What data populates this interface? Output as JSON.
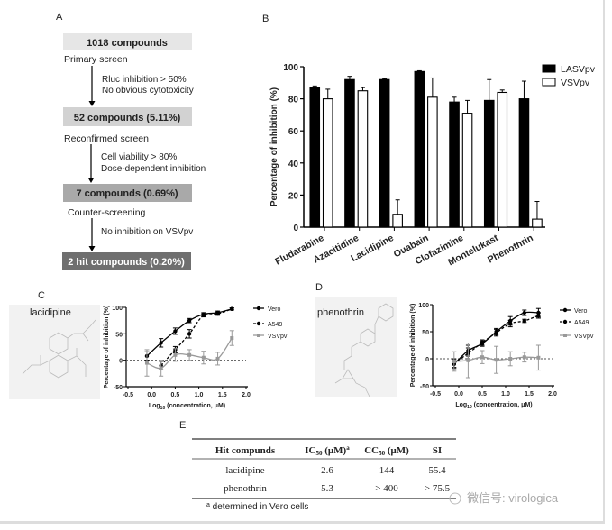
{
  "panel_a": {
    "label": "A",
    "boxes": [
      "1018 compounds",
      "52 compounds  (5.11%)",
      "7 compounds  (0.69%)",
      "2 hit compounds (0.20%)"
    ],
    "box_colors": [
      "#e6e6e6",
      "#d2d2d2",
      "#a9a9a9",
      "#6f6f6f"
    ],
    "steps": [
      {
        "name": "Primary screen",
        "criteria": [
          "Rluc inhibition > 50%",
          "No obvious cytotoxicity"
        ]
      },
      {
        "name": "Reconfirmed screen",
        "criteria": [
          "Cell viability > 80%",
          "Dose-dependent inhibition"
        ]
      },
      {
        "name": "Counter-screening",
        "criteria": [
          "No inhibition on VSVpv"
        ]
      }
    ]
  },
  "panel_c": {
    "label": "C",
    "compound": "lacidipine"
  },
  "panel_d": {
    "label": "D",
    "compound": "phenothrin"
  },
  "chart_data": [
    {
      "panel": "B",
      "type": "bar",
      "ylabel": "Percentage of inhibition (%)",
      "ylim": [
        0,
        100
      ],
      "yticks": [
        "0",
        "20",
        "40",
        "60",
        "80",
        "100"
      ],
      "categories": [
        "Fludarabine",
        "Azacitidine",
        "Lacidipine",
        "Ouabain",
        "Clofazimine",
        "Montelukast",
        "Phenothrin"
      ],
      "legend_placement": "top-right",
      "series": [
        {
          "name": "LASVpv",
          "color": "#000000",
          "values": [
            87,
            92,
            92,
            97,
            78,
            79,
            80
          ],
          "errors": [
            1,
            2,
            0.5,
            0.5,
            3,
            13,
            11
          ]
        },
        {
          "name": "VSVpv",
          "color": "#ffffff",
          "values": [
            80,
            85,
            8,
            81,
            71,
            84,
            5
          ],
          "errors": [
            6,
            2,
            9,
            12,
            8,
            1.5,
            11
          ]
        }
      ]
    },
    {
      "panel": "C",
      "type": "line",
      "xlabel": "Log10 (concentration, μM)",
      "ylabel": "Percentage of inhibition (%)",
      "xlim": [
        -0.5,
        2.0
      ],
      "ylim": [
        -50,
        100
      ],
      "xticks": [
        "-0.5",
        "0.0",
        "0.5",
        "1.0",
        "1.5",
        "2.0"
      ],
      "yticks": [
        "-50",
        "0",
        "50",
        "100"
      ],
      "x": [
        -0.1,
        0.2,
        0.5,
        0.8,
        1.1,
        1.4,
        1.7
      ],
      "series": [
        {
          "name": "Vero",
          "color": "#000000",
          "dash": false,
          "values": [
            8,
            33,
            55,
            75,
            87,
            90,
            97
          ],
          "errors": [
            8,
            8,
            6,
            4,
            3,
            3,
            2
          ]
        },
        {
          "name": "A549",
          "color": "#000000",
          "dash": true,
          "values": [
            null,
            -10,
            20,
            50,
            85,
            88,
            97
          ],
          "errors": [
            null,
            8,
            6,
            8,
            3,
            3,
            2
          ]
        },
        {
          "name": "VSVpv",
          "color": "#999999",
          "dash": false,
          "values": [
            -5,
            -15,
            10,
            10,
            5,
            3,
            42
          ],
          "errors": [
            25,
            15,
            12,
            10,
            12,
            12,
            14
          ]
        }
      ]
    },
    {
      "panel": "D",
      "type": "line",
      "xlabel": "Log10 (concentration, μM)",
      "ylabel": "Percentage of inhibition (%)",
      "xlim": [
        -0.5,
        2.0
      ],
      "ylim": [
        -50,
        100
      ],
      "xticks": [
        "-0.5",
        "0.0",
        "0.5",
        "1.0",
        "1.5",
        "2.0"
      ],
      "yticks": [
        "-50",
        "0",
        "50",
        "100"
      ],
      "x": [
        -0.1,
        0.2,
        0.5,
        0.8,
        1.1,
        1.4,
        1.7
      ],
      "series": [
        {
          "name": "Vero",
          "color": "#000000",
          "dash": false,
          "values": [
            -10,
            15,
            28,
            50,
            70,
            85,
            85
          ],
          "errors": [
            8,
            10,
            5,
            6,
            8,
            5,
            8
          ]
        },
        {
          "name": "A549",
          "color": "#000000",
          "dash": true,
          "values": [
            -8,
            10,
            30,
            48,
            65,
            70,
            80
          ],
          "errors": [
            8,
            10,
            5,
            6,
            6,
            3,
            5
          ]
        },
        {
          "name": "VSVpv",
          "color": "#999999",
          "dash": false,
          "values": [
            -5,
            -3,
            3,
            -2,
            0,
            3,
            2
          ],
          "errors": [
            18,
            32,
            12,
            25,
            13,
            9,
            23
          ]
        }
      ]
    }
  ],
  "panel_e": {
    "label": "E",
    "headers": [
      "Hit compunds",
      "IC",
      "50",
      " (μM)",
      "a",
      "CC",
      "50",
      " (μM)",
      "SI"
    ],
    "rows": [
      [
        "lacidipine",
        "2.6",
        "144",
        "55.4"
      ],
      [
        "phenothrin",
        "5.3",
        "> 400",
        "> 75.5"
      ]
    ],
    "footnote_mark": "a",
    "footnote": " determined in Vero cells"
  },
  "watermark": "微信号: virologica"
}
